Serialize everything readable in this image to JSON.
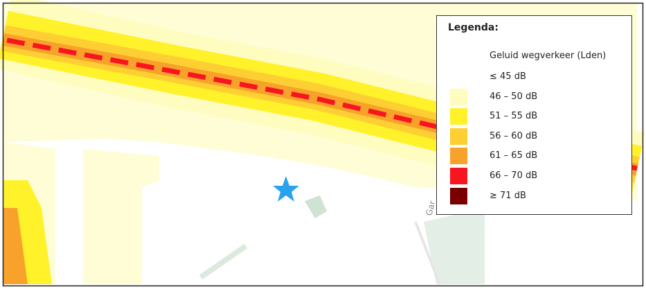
{
  "map_labels": [
    "Gar"
  ],
  "legend": {
    "title": "Legenda:",
    "subtitle": "Geluid wegverkeer (Lden)",
    "items": [
      {
        "label": "≤ 45 dB"
      },
      {
        "label": "46 – 50 dB",
        "color": "#fefcbf"
      },
      {
        "label": "51 – 55 dB",
        "color": "#fff22a"
      },
      {
        "label": "56 – 60 dB",
        "color": "#fdcf33"
      },
      {
        "label": "61 – 65 dB",
        "color": "#f9a22b"
      },
      {
        "label": "66 – 70 dB",
        "color": "#f7151f"
      },
      {
        "label": "≥ 71 dB",
        "color": "#7a0000"
      }
    ]
  }
}
